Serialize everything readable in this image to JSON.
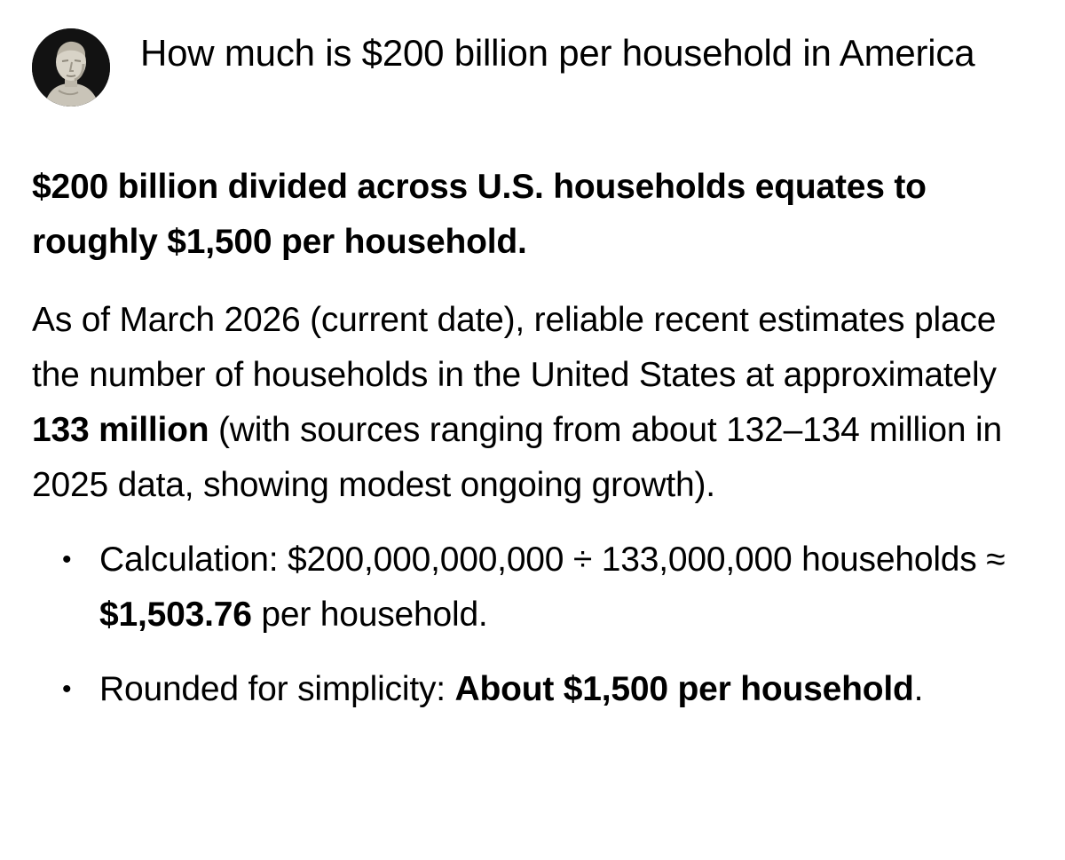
{
  "question": {
    "avatar_icon": "bust-portrait-avatar",
    "text": "How much is $200 billion per household in America"
  },
  "answer": {
    "lead": "$200 billion divided across U.S. households equates to roughly $1,500 per household.",
    "paragraph": {
      "before": "As of March 2026 (current date), reliable recent estimates place the number of households in the United States at approximately ",
      "bold": "133 million",
      "after": " (with sources ranging from about 132–134 million in 2025 data, showing modest ongoing growth)."
    },
    "bullets": [
      {
        "before": "Calculation: $200,000,000,000 ÷ 133,000,000 households ≈ ",
        "bold": "$1,503.76",
        "after": " per household."
      },
      {
        "before": "Rounded for simplicity: ",
        "bold": "About $1,500 per household",
        "after": "."
      }
    ],
    "bullet_glyph": "•"
  }
}
